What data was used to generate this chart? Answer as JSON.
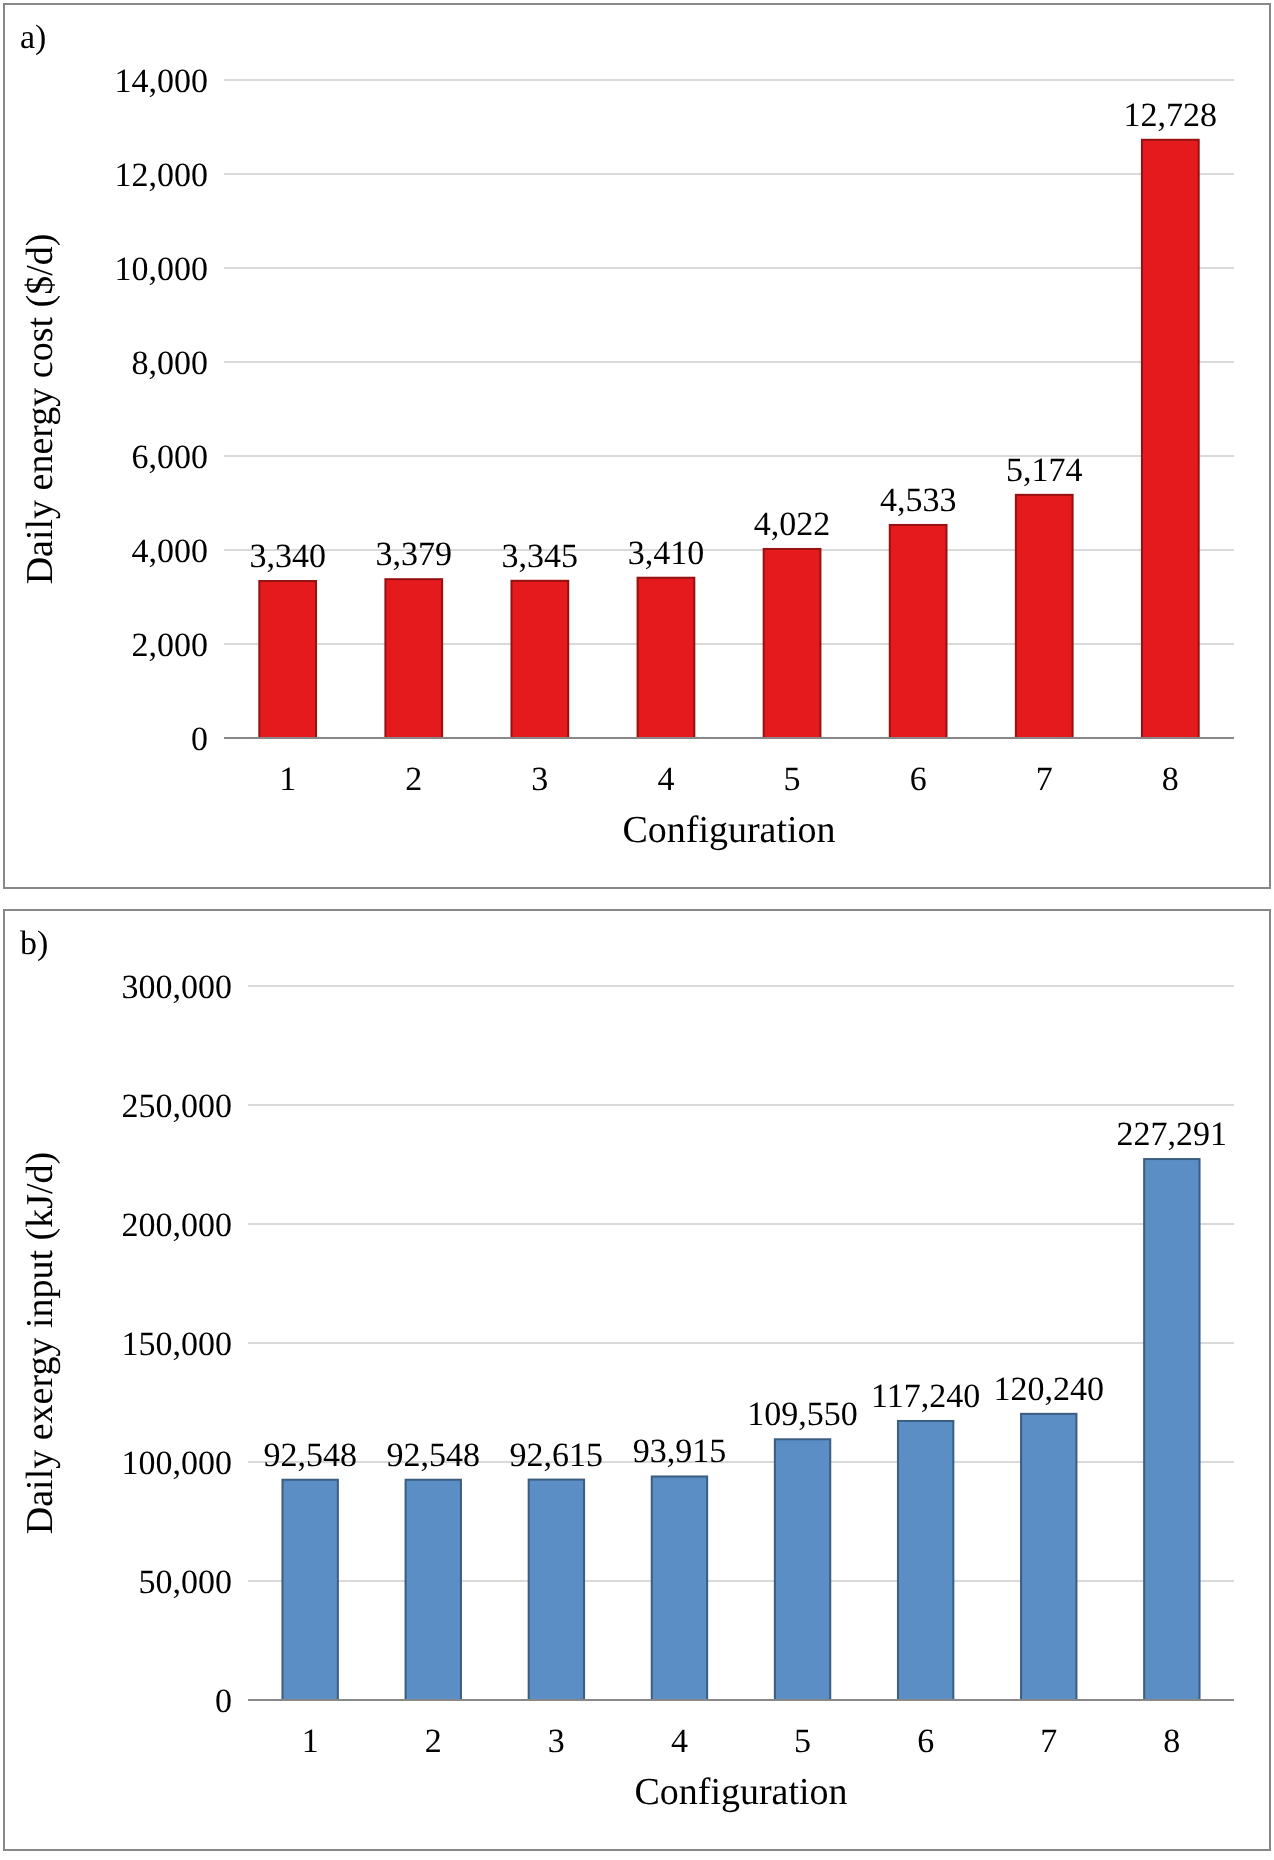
{
  "chart_data": [
    {
      "type": "bar",
      "xlabel": "Configuration",
      "ylabel": "Daily energy cost ($/d)",
      "annotations": [
        "a)"
      ],
      "categories": [
        "1",
        "2",
        "3",
        "4",
        "5",
        "6",
        "7",
        "8"
      ],
      "series": [
        {
          "color": "#e41a1c",
          "values": [
            3340,
            3379,
            3345,
            3410,
            4022,
            4533,
            5174,
            12728
          ]
        }
      ],
      "ylim": [
        0,
        14000
      ],
      "yticks": [
        {
          "value": 0,
          "label": "0"
        },
        {
          "value": 2000,
          "label": "2,000"
        },
        {
          "value": 4000,
          "label": "4,000"
        },
        {
          "value": 6000,
          "label": "6,000"
        },
        {
          "value": 8000,
          "label": "8,000"
        },
        {
          "value": 10000,
          "label": "10,000"
        },
        {
          "value": 12000,
          "label": "12,000"
        },
        {
          "value": 14000,
          "label": "14,000"
        }
      ],
      "value_labels": [
        "3,340",
        "3,379",
        "3,345",
        "3,410",
        "4,022",
        "4,533",
        "5,174",
        "12,728"
      ],
      "grid": "y"
    },
    {
      "type": "bar",
      "xlabel": "Configuration",
      "ylabel": "Daily exergy input (kJ/d)",
      "annotations": [
        "b)"
      ],
      "categories": [
        "1",
        "2",
        "3",
        "4",
        "5",
        "6",
        "7",
        "8"
      ],
      "series": [
        {
          "color": "#5b8ec4",
          "values": [
            92548,
            92548,
            92615,
            93915,
            109550,
            117240,
            120240,
            227291
          ]
        }
      ],
      "ylim": [
        0,
        300000
      ],
      "yticks": [
        {
          "value": 0,
          "label": "0"
        },
        {
          "value": 50000,
          "label": "50,000"
        },
        {
          "value": 100000,
          "label": "100,000"
        },
        {
          "value": 150000,
          "label": "150,000"
        },
        {
          "value": 200000,
          "label": "200,000"
        },
        {
          "value": 250000,
          "label": "250,000"
        },
        {
          "value": 300000,
          "label": "300,000"
        }
      ],
      "value_labels": [
        "92,548",
        "92,548",
        "92,615",
        "93,915",
        "109,550",
        "117,240",
        "120,240",
        "227,291"
      ],
      "grid": "y"
    }
  ]
}
